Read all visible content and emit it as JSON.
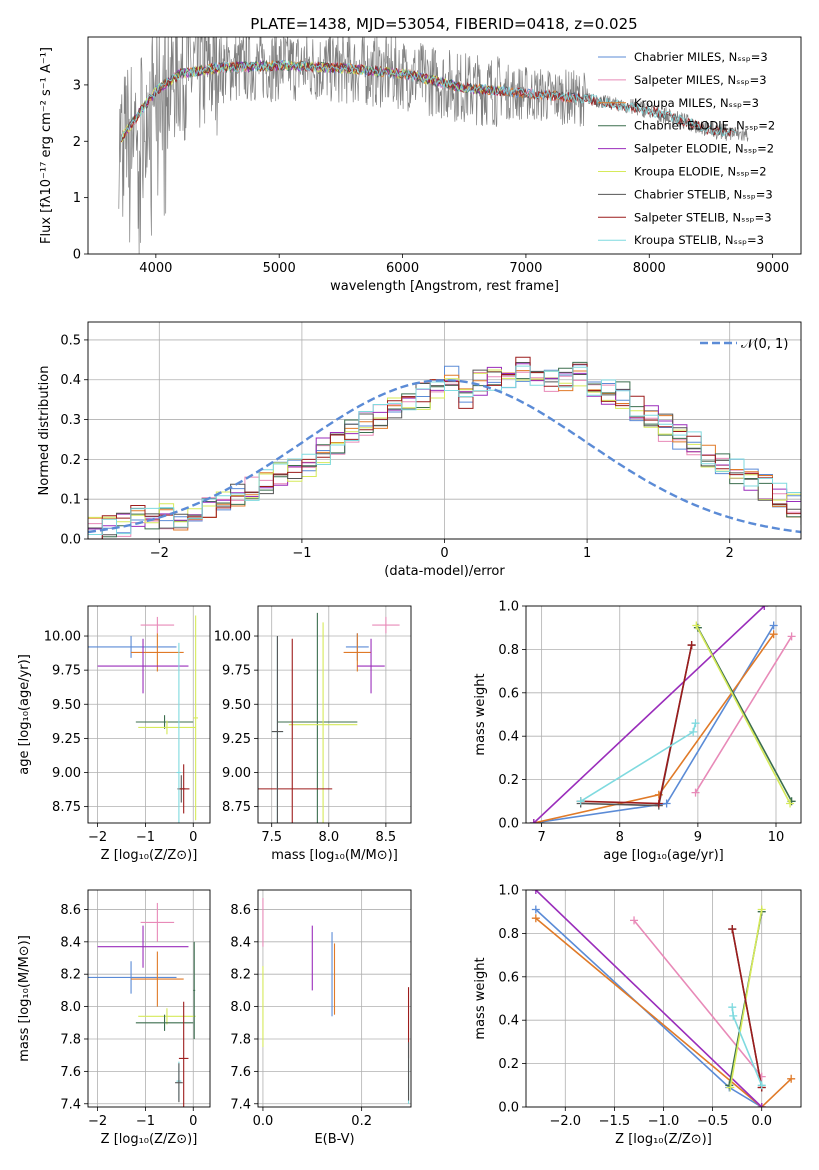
{
  "title": "PLATE=1438, MJD=53054, FIBERID=0418, z=0.025",
  "colors": {
    "chabrier_miles": "#5b8bd6",
    "salpeter_miles": "#e88ab8",
    "kroupa_miles": "#e07a28",
    "chabrier_elodie": "#3b6e4e",
    "salpeter_elodie": "#9a2dbb",
    "kroupa_elodie": "#d6ea5a",
    "chabrier_stelib": "#555555",
    "salpeter_stelib": "#9c1c1c",
    "kroupa_stelib": "#7fdadf",
    "observed": "#808080",
    "normal": "#5b8bd6"
  },
  "chart_data": [
    {
      "id": "spectrum",
      "type": "line",
      "xlabel": "wavelength [Angstrom, rest frame]",
      "ylabel": "Flux [fλ10⁻¹⁷ erg cm⁻² s⁻¹ A⁻¹]",
      "xlim": [
        3450,
        9230
      ],
      "ylim": [
        0,
        3.85
      ],
      "xticks": [
        "4000",
        "5000",
        "6000",
        "7000",
        "8000",
        "9000"
      ],
      "yticks": [
        "0",
        "1",
        "2",
        "3"
      ],
      "legend": [
        "Chabrier MILES, Nₛₛₚ=3",
        "Salpeter MILES, Nₛₛₚ=3",
        "Kroupa MILES, Nₛₛₚ=3",
        "Chabrier ELODIE, Nₛₛₚ=2",
        "Salpeter ELODIE, Nₛₛₚ=2",
        "Kroupa ELODIE, Nₛₛₚ=2",
        "Chabrier STELIB, Nₛₛₚ=3",
        "Salpeter STELIB, Nₛₛₚ=3",
        "Kroupa STELIB, Nₛₛₚ=3"
      ],
      "legend_placement": "upper-right",
      "observed_trend": [
        [
          3700,
          2.0
        ],
        [
          3800,
          2.3
        ],
        [
          4000,
          2.9
        ],
        [
          4200,
          3.2
        ],
        [
          4500,
          3.3
        ],
        [
          5000,
          3.35
        ],
        [
          5500,
          3.3
        ],
        [
          6000,
          3.2
        ],
        [
          6500,
          2.95
        ],
        [
          7000,
          2.85
        ],
        [
          7500,
          2.75
        ],
        [
          8000,
          2.55
        ],
        [
          8500,
          2.2
        ],
        [
          8800,
          2.1
        ]
      ]
    },
    {
      "id": "residuals",
      "type": "histogram",
      "xlabel": "(data-model)/error",
      "ylabel": "Normed distribution",
      "xlim": [
        -2.5,
        2.5
      ],
      "ylim": [
        0,
        0.545
      ],
      "xticks": [
        "−2",
        "−1",
        "0",
        "1",
        "2"
      ],
      "yticks": [
        "0.0",
        "0.1",
        "0.2",
        "0.3",
        "0.4",
        "0.5"
      ],
      "legend": [
        "𝒩(0, 1)"
      ],
      "legend_placement": "upper-right",
      "bin_width": 0.1,
      "base_values": [
        0.02,
        0.03,
        0.04,
        0.05,
        0.06,
        0.06,
        0.05,
        0.05,
        0.07,
        0.09,
        0.11,
        0.13,
        0.14,
        0.16,
        0.18,
        0.19,
        0.22,
        0.24,
        0.27,
        0.29,
        0.31,
        0.33,
        0.34,
        0.36,
        0.38,
        0.4,
        0.36,
        0.39,
        0.4,
        0.41,
        0.43,
        0.4,
        0.39,
        0.4,
        0.41,
        0.39,
        0.37,
        0.36,
        0.33,
        0.3,
        0.28,
        0.26,
        0.24,
        0.21,
        0.19,
        0.17,
        0.15,
        0.13,
        0.11,
        0.09,
        0.07,
        0.06,
        0.05,
        0.04,
        0.03,
        0.03,
        0.02,
        0.02,
        0.02,
        0.01,
        0.01,
        0.01,
        0.01,
        0.01,
        0.01,
        0.01,
        0.01,
        0.01,
        0.01,
        0.01
      ]
    },
    {
      "id": "age_vs_Z",
      "type": "scatter",
      "xlabel": "Z [log₁₀(Z/Z⊙)]",
      "ylabel": "age  [log₁₀(age/yr)]",
      "xlim": [
        -2.2,
        0.35
      ],
      "ylim": [
        8.63,
        10.22
      ],
      "xticks": [
        "−2",
        "−1",
        "0"
      ],
      "yticks": [
        "8.75",
        "9.00",
        "9.25",
        "9.50",
        "9.75",
        "10.00"
      ],
      "points": [
        {
          "series": "chabrier_miles",
          "x": -1.3,
          "y": 9.92,
          "xerr": 0.95,
          "yerr": 0.08
        },
        {
          "series": "salpeter_miles",
          "x": -0.75,
          "y": 10.08,
          "xerr": 0.35,
          "yerr": 0.06
        },
        {
          "series": "kroupa_miles",
          "x": -0.75,
          "y": 9.88,
          "xerr": 0.55,
          "yerr": 0.14
        },
        {
          "series": "chabrier_elodie",
          "x": -0.6,
          "y": 9.37,
          "xerr": 0.6,
          "yerr": 0.05
        },
        {
          "series": "salpeter_elodie",
          "x": -1.05,
          "y": 9.78,
          "xerr": 0.95,
          "yerr": 0.2
        },
        {
          "series": "kroupa_elodie",
          "x": -0.55,
          "y": 9.33,
          "xerr": 0.6,
          "yerr": 0.05
        },
        {
          "series": "chabrier_stelib",
          "x": -0.25,
          "y": 8.88,
          "xerr": 0.08,
          "yerr": 0.1
        },
        {
          "series": "salpeter_stelib",
          "x": -0.2,
          "y": 8.88,
          "xerr": 0.12,
          "yerr": 0.18
        },
        {
          "series": "kroupa_stelib",
          "x": -0.3,
          "y": 9.0,
          "xerr": 0.05,
          "yerr": 0.95
        },
        {
          "series": "kroupa_elodie",
          "x": 0.05,
          "y": 9.4,
          "xerr": 0.05,
          "yerr": 0.75
        }
      ]
    },
    {
      "id": "age_vs_mass",
      "type": "scatter",
      "xlabel": "mass [log₁₀(M/M⊙)]",
      "ylabel": "",
      "xlim": [
        7.38,
        8.72
      ],
      "ylim": [
        8.63,
        10.22
      ],
      "xticks": [
        "7.5",
        "8.0",
        "8.5"
      ],
      "yticks": [
        "8.75",
        "9.00",
        "9.25",
        "9.50",
        "9.75",
        "10.00"
      ],
      "points": [
        {
          "series": "salpeter_miles",
          "x": 8.5,
          "y": 10.08,
          "xerr": 0.12,
          "yerr": 0.06
        },
        {
          "series": "chabrier_miles",
          "x": 8.25,
          "y": 9.92,
          "xerr": 0.1,
          "yerr": 0.1
        },
        {
          "series": "kroupa_miles",
          "x": 8.25,
          "y": 9.88,
          "xerr": 0.12,
          "yerr": 0.14
        },
        {
          "series": "salpeter_elodie",
          "x": 8.37,
          "y": 9.78,
          "xerr": 0.12,
          "yerr": 0.2
        },
        {
          "series": "chabrier_elodie",
          "x": 7.9,
          "y": 9.37,
          "xerr": 0.35,
          "yerr": 0.8
        },
        {
          "series": "kroupa_elodie",
          "x": 7.95,
          "y": 9.35,
          "xerr": 0.3,
          "yerr": 0.75
        },
        {
          "series": "salpeter_stelib",
          "x": 7.68,
          "y": 8.88,
          "xerr": 0.35,
          "yerr": 1.1
        },
        {
          "series": "kroupa_stelib",
          "x": 7.55,
          "y": 9.3,
          "xerr": 0.05,
          "yerr": 0.7
        },
        {
          "series": "chabrier_stelib",
          "x": 7.55,
          "y": 9.3,
          "xerr": 0.05,
          "yerr": 0.7
        }
      ]
    },
    {
      "id": "mass_weight_vs_age",
      "type": "line",
      "xlabel": "age  [log₁₀(age/yr)]",
      "ylabel": "mass weight",
      "xlim": [
        6.8,
        10.32
      ],
      "ylim": [
        0,
        1
      ],
      "xticks": [
        "7",
        "8",
        "9",
        "10"
      ],
      "yticks": [
        "0.0",
        "0.2",
        "0.4",
        "0.6",
        "0.8",
        "1.0"
      ],
      "series": [
        {
          "key": "chabrier_miles",
          "x": [
            6.9,
            8.6,
            9.97
          ],
          "y": [
            0.0,
            0.09,
            0.91
          ]
        },
        {
          "key": "salpeter_miles",
          "x": [
            8.97,
            10.2
          ],
          "y": [
            0.14,
            0.86
          ]
        },
        {
          "key": "kroupa_miles",
          "x": [
            6.9,
            8.5,
            9.97
          ],
          "y": [
            0.0,
            0.13,
            0.87
          ]
        },
        {
          "key": "chabrier_elodie",
          "x": [
            9.0,
            10.2
          ],
          "y": [
            0.9,
            0.1
          ]
        },
        {
          "key": "salpeter_elodie",
          "x": [
            6.9,
            9.85
          ],
          "y": [
            0.0,
            1.0
          ]
        },
        {
          "key": "kroupa_elodie",
          "x": [
            8.98,
            10.18
          ],
          "y": [
            0.91,
            0.09
          ]
        },
        {
          "key": "chabrier_stelib",
          "x": [
            7.5,
            8.5,
            8.92
          ],
          "y": [
            0.09,
            0.08,
            0.82
          ]
        },
        {
          "key": "salpeter_stelib",
          "x": [
            7.5,
            8.5,
            8.92
          ],
          "y": [
            0.1,
            0.09,
            0.82
          ]
        },
        {
          "key": "kroupa_stelib",
          "x": [
            7.5,
            8.94,
            8.97
          ],
          "y": [
            0.1,
            0.42,
            0.46
          ]
        }
      ]
    },
    {
      "id": "mass_vs_Z",
      "type": "scatter",
      "xlabel": "Z [log₁₀(Z/Z⊙)]",
      "ylabel": "mass [log₁₀(M/M⊙)]",
      "xlim": [
        -2.2,
        0.35
      ],
      "ylim": [
        7.38,
        8.72
      ],
      "xticks": [
        "−2",
        "−1",
        "0"
      ],
      "yticks": [
        "7.4",
        "7.6",
        "7.8",
        "8.0",
        "8.2",
        "8.4",
        "8.6"
      ],
      "points": [
        {
          "series": "salpeter_miles",
          "x": -0.75,
          "y": 8.52,
          "xerr": 0.35,
          "yerr": 0.12
        },
        {
          "series": "salpeter_elodie",
          "x": -1.05,
          "y": 8.37,
          "xerr": 0.95,
          "yerr": 0.13
        },
        {
          "series": "chabrier_miles",
          "x": -1.3,
          "y": 8.18,
          "xerr": 0.95,
          "yerr": 0.1
        },
        {
          "series": "kroupa_miles",
          "x": -0.75,
          "y": 8.17,
          "xerr": 0.55,
          "yerr": 0.17
        },
        {
          "series": "kroupa_elodie",
          "x": -0.55,
          "y": 7.94,
          "xerr": 0.6,
          "yerr": 0.05
        },
        {
          "series": "chabrier_elodie",
          "x": -0.6,
          "y": 7.9,
          "xerr": 0.6,
          "yerr": 0.05
        },
        {
          "series": "salpeter_stelib",
          "x": -0.2,
          "y": 7.68,
          "xerr": 0.1,
          "yerr": 0.35
        },
        {
          "series": "kroupa_stelib",
          "x": -0.3,
          "y": 7.54,
          "xerr": 0.05,
          "yerr": 0.12
        },
        {
          "series": "chabrier_stelib",
          "x": -0.3,
          "y": 7.53,
          "xerr": 0.08,
          "yerr": 0.12
        },
        {
          "series": "chabrier_elodie",
          "x": 0.02,
          "y": 8.1,
          "xerr": 0.02,
          "yerr": 0.3
        }
      ]
    },
    {
      "id": "mass_vs_ebv",
      "type": "scatter",
      "xlabel": "E(B-V)",
      "ylabel": "",
      "xlim": [
        -0.01,
        0.3
      ],
      "ylim": [
        7.38,
        8.72
      ],
      "xticks": [
        "0.0",
        "0.2"
      ],
      "yticks": [
        "7.4",
        "7.6",
        "7.8",
        "8.0",
        "8.2",
        "8.4",
        "8.6"
      ],
      "points": [
        {
          "series": "salpeter_miles",
          "x": 0.0,
          "y": 8.52,
          "xerr": 0.0,
          "yerr": 0.15
        },
        {
          "series": "kroupa_elodie",
          "x": 0.0,
          "y": 8.0,
          "xerr": 0.0,
          "yerr": 0.25
        },
        {
          "series": "salpeter_elodie",
          "x": 0.1,
          "y": 8.3,
          "xerr": 0.0,
          "yerr": 0.2
        },
        {
          "series": "chabrier_miles",
          "x": 0.14,
          "y": 8.2,
          "xerr": 0.0,
          "yerr": 0.26
        },
        {
          "series": "kroupa_miles",
          "x": 0.145,
          "y": 8.17,
          "xerr": 0.0,
          "yerr": 0.22
        },
        {
          "series": "salpeter_stelib",
          "x": 0.295,
          "y": 7.9,
          "xerr": 0.0,
          "yerr": 0.22
        },
        {
          "series": "kroupa_stelib",
          "x": 0.295,
          "y": 7.55,
          "xerr": 0.0,
          "yerr": 0.15
        },
        {
          "series": "chabrier_stelib",
          "x": 0.295,
          "y": 7.6,
          "xerr": 0.0,
          "yerr": 0.18
        }
      ]
    },
    {
      "id": "mass_weight_vs_Z",
      "type": "line",
      "xlabel": "Z [log₁₀(Z/Z⊙)]",
      "ylabel": "mass weight",
      "xlim": [
        -2.4,
        0.4
      ],
      "ylim": [
        0,
        1
      ],
      "xticks": [
        "−2.0",
        "−1.5",
        "−1.0",
        "−0.5",
        "0.0"
      ],
      "yticks": [
        "0.0",
        "0.2",
        "0.4",
        "0.6",
        "0.8",
        "1.0"
      ],
      "series": [
        {
          "key": "chabrier_miles",
          "x": [
            -2.3,
            -0.33,
            0.0
          ],
          "y": [
            0.91,
            0.09,
            0.0
          ]
        },
        {
          "key": "kroupa_miles",
          "x": [
            -2.3,
            0.0,
            0.3
          ],
          "y": [
            0.87,
            0.0,
            0.13
          ]
        },
        {
          "key": "salpeter_miles",
          "x": [
            -1.3,
            0.0
          ],
          "y": [
            0.86,
            0.14
          ]
        },
        {
          "key": "salpeter_elodie",
          "x": [
            -2.3,
            0.0
          ],
          "y": [
            1.0,
            0.0
          ]
        },
        {
          "key": "chabrier_elodie",
          "x": [
            -0.33,
            0.0
          ],
          "y": [
            0.1,
            0.9
          ]
        },
        {
          "key": "kroupa_elodie",
          "x": [
            -0.32,
            0.0
          ],
          "y": [
            0.09,
            0.91
          ]
        },
        {
          "key": "chabrier_stelib",
          "x": [
            -0.3,
            0.0
          ],
          "y": [
            0.82,
            0.09
          ]
        },
        {
          "key": "salpeter_stelib",
          "x": [
            -0.3,
            0.0
          ],
          "y": [
            0.82,
            0.09
          ]
        },
        {
          "key": "kroupa_stelib",
          "x": [
            -0.3,
            -0.29,
            0.0
          ],
          "y": [
            0.46,
            0.42,
            0.1
          ]
        }
      ]
    }
  ]
}
